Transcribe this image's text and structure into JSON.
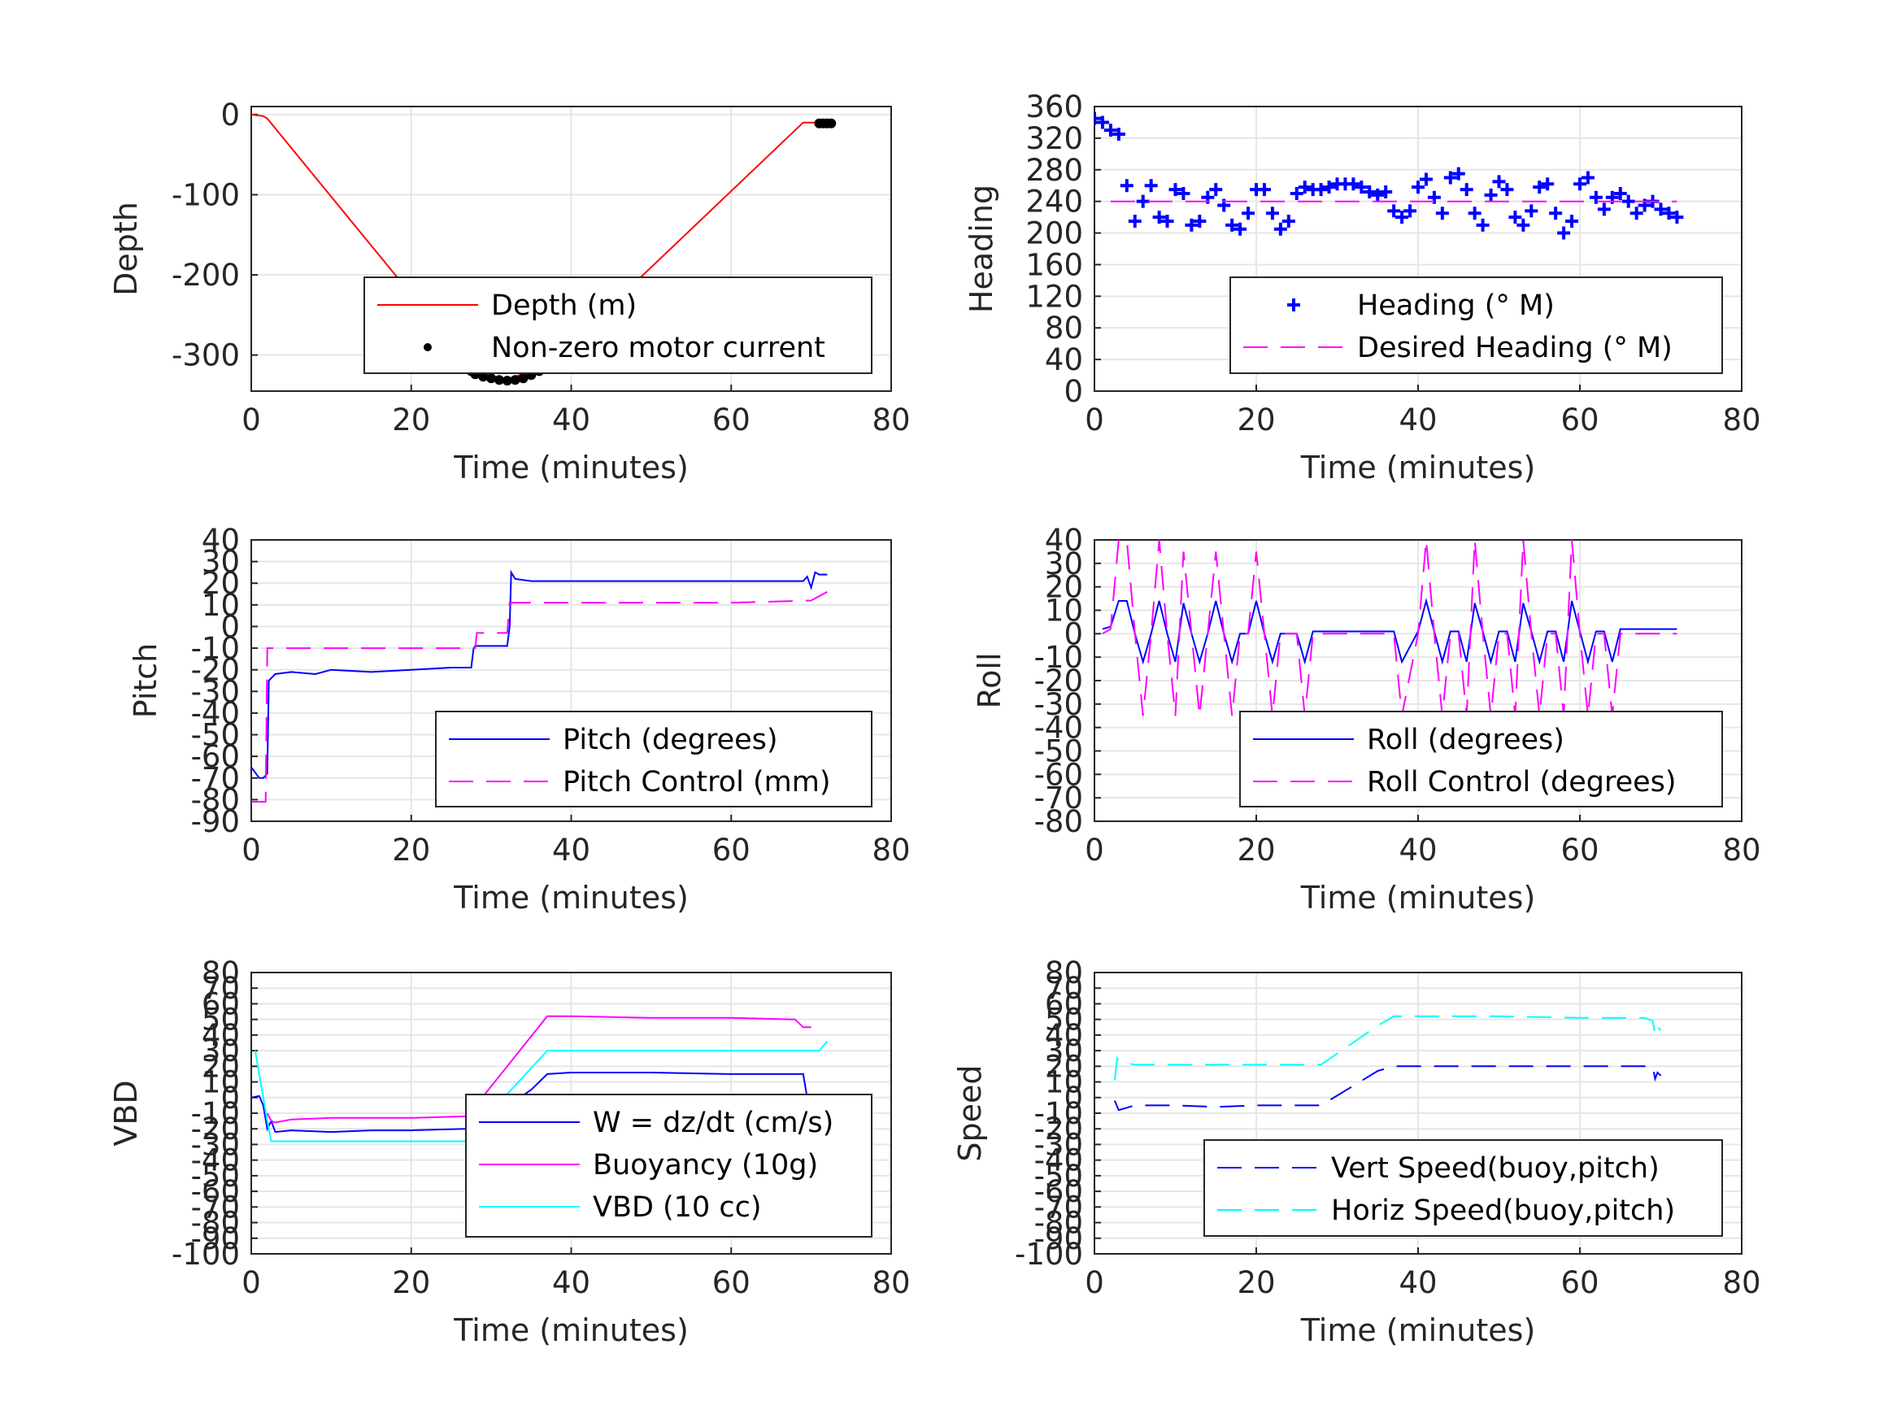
{
  "colors": {
    "depth": "#ff0000",
    "motor": "#000000",
    "blue": "#0000ff",
    "magenta": "#ff00ff",
    "cyan": "#00ffff",
    "grid": "#e6e6e6",
    "axis": "#262626"
  },
  "chart_data": [
    {
      "type": "line",
      "xlabel": "Time (minutes)",
      "ylabel": "Depth",
      "xlim": [
        0,
        80
      ],
      "ylim": [
        -345,
        10
      ],
      "xticks": [
        0,
        20,
        40,
        60,
        80
      ],
      "yticks": [
        0,
        -100,
        -200,
        -300
      ],
      "grid": true,
      "legend": "lower-right",
      "series": [
        {
          "name": "Depth (m)",
          "style": "solid",
          "color": "#ff0000",
          "x": [
            0,
            1.5,
            2,
            28,
            32,
            37,
            69,
            70,
            72.5
          ],
          "y": [
            0,
            -2,
            -5,
            -322,
            -330,
            -314,
            -10,
            -10,
            -11
          ]
        },
        {
          "name": "Non-zero motor current",
          "style": "dots",
          "color": "#000000",
          "x": [
            27.5,
            28,
            29,
            30,
            31,
            32,
            33,
            34,
            35,
            36,
            37,
            71,
            71.5,
            72,
            72.5
          ],
          "y": [
            -320,
            -324,
            -327,
            -329,
            -331,
            -332,
            -331,
            -329,
            -325,
            -320,
            -314,
            -11,
            -11,
            -11,
            -11
          ]
        }
      ]
    },
    {
      "type": "line",
      "xlabel": "Time (minutes)",
      "ylabel": "Heading",
      "xlim": [
        0,
        80
      ],
      "ylim": [
        0,
        360
      ],
      "xticks": [
        0,
        20,
        40,
        60,
        80
      ],
      "yticks": [
        0,
        40,
        80,
        120,
        160,
        200,
        240,
        280,
        320,
        360
      ],
      "grid": true,
      "legend": "lower-right",
      "series": [
        {
          "name": "Heading (° M)",
          "style": "plus",
          "color": "#0000ff",
          "x": [
            0,
            1,
            2,
            3,
            4,
            5,
            6,
            7,
            8,
            9,
            10,
            11,
            12,
            13,
            14,
            15,
            16,
            17,
            18,
            19,
            20,
            21,
            22,
            23,
            24,
            25,
            26,
            27,
            28,
            29,
            30,
            31,
            32,
            33,
            34,
            35,
            36,
            37,
            38,
            39,
            40,
            41,
            42,
            43,
            44,
            45,
            46,
            47,
            48,
            49,
            50,
            51,
            52,
            53,
            54,
            55,
            56,
            57,
            58,
            59,
            60,
            61,
            62,
            63,
            64,
            65,
            66,
            67,
            68,
            69,
            70,
            71,
            72
          ],
          "y": [
            345,
            340,
            330,
            325,
            260,
            215,
            240,
            260,
            220,
            215,
            255,
            250,
            210,
            215,
            245,
            255,
            235,
            210,
            205,
            225,
            255,
            255,
            225,
            205,
            215,
            250,
            258,
            255,
            255,
            258,
            262,
            262,
            262,
            258,
            252,
            248,
            252,
            228,
            220,
            228,
            258,
            268,
            245,
            225,
            270,
            275,
            255,
            225,
            210,
            248,
            265,
            255,
            220,
            210,
            228,
            258,
            262,
            225,
            200,
            215,
            262,
            270,
            245,
            230,
            245,
            250,
            240,
            225,
            235,
            240,
            230,
            225,
            220
          ]
        },
        {
          "name": "Desired Heading (° M)",
          "style": "dash",
          "color": "#ff00ff",
          "x": [
            2,
            72
          ],
          "y": [
            240,
            240
          ]
        }
      ]
    },
    {
      "type": "line",
      "xlabel": "Time (minutes)",
      "ylabel": "Pitch",
      "xlim": [
        0,
        80
      ],
      "ylim": [
        -90,
        40
      ],
      "xticks": [
        0,
        20,
        40,
        60,
        80
      ],
      "yticks": [
        40,
        30,
        20,
        10,
        0,
        -10,
        -20,
        -30,
        -40,
        -50,
        -60,
        -70,
        -80,
        -90
      ],
      "grid": true,
      "legend": "lower-right",
      "series": [
        {
          "name": "Pitch (degrees)",
          "style": "solid",
          "color": "#0000ff",
          "x": [
            0,
            1,
            1.5,
            2,
            2.2,
            3,
            5,
            8,
            10,
            15,
            20,
            25,
            27.5,
            27.8,
            28,
            32,
            32.3,
            32.5,
            33,
            35,
            40,
            50,
            60,
            69,
            69.5,
            70,
            70.5,
            71,
            72
          ],
          "y": [
            -65,
            -70,
            -70,
            -68,
            -25,
            -22,
            -21,
            -22,
            -20,
            -21,
            -20,
            -19,
            -19,
            -10,
            -9,
            -9,
            0,
            25,
            22,
            21,
            21,
            21,
            21,
            21,
            23,
            18,
            25,
            24,
            24
          ]
        },
        {
          "name": "Pitch Control (mm)",
          "style": "dash",
          "color": "#ff00ff",
          "x": [
            0,
            1.8,
            2,
            28,
            28.2,
            32,
            32.3,
            60,
            70,
            72
          ],
          "y": [
            -81,
            -81,
            -10,
            -10,
            -3,
            -3,
            11,
            11,
            12,
            16
          ]
        }
      ]
    },
    {
      "type": "line",
      "xlabel": "Time (minutes)",
      "ylabel": "Roll",
      "xlim": [
        0,
        80
      ],
      "ylim": [
        -80,
        40
      ],
      "xticks": [
        0,
        20,
        40,
        60,
        80
      ],
      "yticks": [
        40,
        30,
        20,
        10,
        0,
        -10,
        -20,
        -30,
        -40,
        -50,
        -60,
        -70,
        -80
      ],
      "grid": true,
      "legend": "lower-right",
      "series": [
        {
          "name": "Roll (degrees)",
          "style": "solid",
          "color": "#0000ff",
          "x": [
            1,
            2,
            3,
            4,
            5,
            6,
            7,
            8,
            9,
            10,
            11,
            12,
            13,
            14,
            15,
            16,
            17,
            18,
            19,
            20,
            21,
            22,
            23,
            24,
            25,
            26,
            27,
            30,
            35,
            37,
            38,
            40,
            41,
            42,
            43,
            44,
            45,
            46,
            47,
            48,
            49,
            50,
            51,
            52,
            53,
            54,
            55,
            56,
            57,
            58,
            59,
            60,
            61,
            62,
            63,
            64,
            65,
            66,
            67,
            70,
            72
          ],
          "y": [
            2,
            3,
            14,
            14,
            0,
            -12,
            0,
            14,
            0,
            -12,
            13,
            0,
            -12,
            0,
            14,
            0,
            -12,
            0,
            0,
            14,
            0,
            -12,
            0,
            0,
            0,
            -12,
            1,
            1,
            1,
            1,
            -12,
            1,
            14,
            1,
            -12,
            1,
            1,
            -12,
            13,
            1,
            -12,
            1,
            1,
            -12,
            13,
            1,
            -12,
            1,
            1,
            -12,
            14,
            1,
            -12,
            1,
            1,
            -12,
            2,
            2,
            2,
            2,
            2
          ]
        },
        {
          "name": "Roll Control (degrees)",
          "style": "dash",
          "color": "#ff00ff",
          "x": [
            1,
            2,
            3,
            4,
            5,
            6,
            7,
            8,
            9,
            10,
            11,
            12,
            13,
            14,
            15,
            16,
            17,
            18,
            19,
            20,
            21,
            22,
            23,
            24,
            25,
            26,
            27,
            30,
            35,
            37,
            38,
            40,
            41,
            42,
            43,
            44,
            45,
            46,
            47,
            48,
            49,
            50,
            51,
            52,
            53,
            54,
            55,
            56,
            57,
            58,
            59,
            60,
            61,
            62,
            63,
            64,
            65,
            66,
            67,
            70,
            72
          ],
          "y": [
            0,
            2,
            40,
            40,
            0,
            -35,
            0,
            40,
            0,
            -35,
            35,
            0,
            -35,
            0,
            35,
            0,
            -35,
            0,
            0,
            35,
            0,
            -35,
            0,
            0,
            0,
            -35,
            0,
            0,
            0,
            0,
            -35,
            0,
            40,
            0,
            -35,
            0,
            0,
            -35,
            40,
            0,
            -35,
            0,
            0,
            -35,
            40,
            0,
            -35,
            0,
            0,
            -35,
            40,
            0,
            -35,
            0,
            0,
            -35,
            0,
            0,
            0,
            0,
            0
          ]
        }
      ]
    },
    {
      "type": "line",
      "xlabel": "Time (minutes)",
      "ylabel": "VBD",
      "xlim": [
        0,
        80
      ],
      "ylim": [
        -100,
        80
      ],
      "xticks": [
        0,
        20,
        40,
        60,
        80
      ],
      "yticks": [
        80,
        70,
        60,
        50,
        40,
        30,
        20,
        10,
        0,
        -10,
        -20,
        -30,
        -40,
        -50,
        -60,
        -70,
        -80,
        -90,
        -100
      ],
      "grid": true,
      "legend": "lower-right",
      "series": [
        {
          "name": "W = dz/dt (cm/s)",
          "style": "solid",
          "color": "#0000ff",
          "x": [
            0,
            1,
            1.5,
            2,
            2.5,
            3,
            5,
            10,
            15,
            20,
            27,
            27.5,
            28,
            30,
            33,
            35,
            37,
            40,
            50,
            60,
            69,
            69.5,
            70,
            72
          ],
          "y": [
            0,
            1,
            -5,
            -20,
            -15,
            -22,
            -21,
            -22,
            -21,
            -21,
            -20,
            -15,
            -8,
            -5,
            -2,
            5,
            15,
            16,
            16,
            15,
            15,
            0,
            0,
            0
          ]
        },
        {
          "name": "Buoyancy (10g)",
          "style": "solid",
          "color": "#ff00ff",
          "x": [
            2,
            2.5,
            3,
            5,
            10,
            20,
            27,
            37,
            40,
            50,
            60,
            68,
            69,
            70
          ],
          "y": [
            -10,
            -15,
            -16,
            -14,
            -13,
            -13,
            -12,
            52,
            52,
            51,
            51,
            50,
            45,
            45
          ]
        },
        {
          "name": "VBD (10 cc)",
          "style": "solid",
          "color": "#00ffff",
          "x": [
            0.5,
            1,
            2,
            2.5,
            3,
            10,
            20,
            27,
            28,
            37,
            40,
            50,
            60,
            69,
            70,
            71,
            72
          ],
          "y": [
            30,
            15,
            -15,
            -28,
            -28,
            -28,
            -28,
            -28,
            -20,
            30,
            30,
            30,
            30,
            30,
            30,
            30,
            36
          ]
        }
      ]
    },
    {
      "type": "line",
      "xlabel": "Time (minutes)",
      "ylabel": "Speed",
      "xlim": [
        0,
        80
      ],
      "ylim": [
        -100,
        80
      ],
      "xticks": [
        0,
        20,
        40,
        60,
        80
      ],
      "yticks": [
        80,
        70,
        60,
        50,
        40,
        30,
        20,
        10,
        0,
        -10,
        -20,
        -30,
        -40,
        -50,
        -60,
        -70,
        -80,
        -90,
        -100
      ],
      "grid": true,
      "legend": "lower-right",
      "series": [
        {
          "name": "Vert Speed(buoy,pitch)",
          "style": "dash",
          "color": "#0000ff",
          "x": [
            2.5,
            3,
            5,
            10,
            15,
            20,
            27,
            28,
            35,
            37,
            40,
            50,
            60,
            68,
            69,
            69.3,
            69.6,
            70
          ],
          "y": [
            -2,
            -8,
            -5,
            -5,
            -6,
            -5,
            -5,
            -5,
            17,
            20,
            20,
            20,
            20,
            20,
            20,
            12,
            16,
            14
          ]
        },
        {
          "name": "Horiz Speed(buoy,pitch)",
          "style": "dash",
          "color": "#00ffff",
          "x": [
            2.5,
            2.8,
            3,
            5,
            10,
            15,
            20,
            27,
            28,
            35,
            37,
            40,
            50,
            60,
            68,
            69,
            69.3,
            69.6,
            70
          ],
          "y": [
            11,
            25,
            23,
            21,
            21,
            21,
            21,
            21,
            21,
            46,
            52,
            52,
            52,
            51,
            51,
            49,
            40,
            45,
            43
          ]
        }
      ]
    }
  ]
}
